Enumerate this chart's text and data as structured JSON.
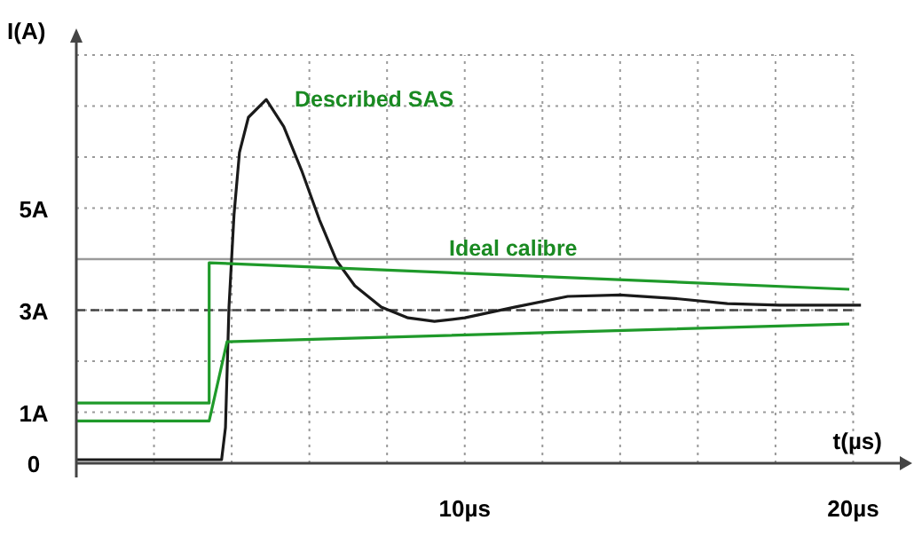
{
  "chart_data": {
    "type": "line",
    "xlabel": "t(µs)",
    "ylabel": "I(A)",
    "xlim": [
      0,
      21.2
    ],
    "ylim": [
      0,
      8.35
    ],
    "xticks": [
      {
        "value": 2,
        "label": null
      },
      {
        "value": 4,
        "label": null
      },
      {
        "value": 6,
        "label": null
      },
      {
        "value": 8,
        "label": null
      },
      {
        "value": 10,
        "label": "10µs"
      },
      {
        "value": 12,
        "label": null
      },
      {
        "value": 14,
        "label": null
      },
      {
        "value": 16,
        "label": null
      },
      {
        "value": 18,
        "label": null
      },
      {
        "value": 20,
        "label": "20µs"
      }
    ],
    "yticks": [
      0,
      {
        "value": 1,
        "label": "1A"
      },
      {
        "value": 2,
        "label": null
      },
      {
        "value": 3,
        "label": "3A"
      },
      {
        "value": 4,
        "label": null
      },
      {
        "value": 5,
        "label": "5A"
      },
      {
        "value": 6,
        "label": null
      },
      {
        "value": 7,
        "label": null
      },
      {
        "value": 8,
        "label": null
      }
    ],
    "grid": true,
    "marker": "none",
    "line_style": "solid",
    "series": [
      {
        "color": "#1a1a1a",
        "x": [
          0,
          3.74,
          3.84,
          3.93,
          4.06,
          4.2,
          4.43,
          4.89,
          5.34,
          5.8,
          6.26,
          6.7,
          7.17,
          7.85,
          8.54,
          9.22,
          10,
          11.28,
          12.65,
          14,
          15.4,
          16.76,
          18.1,
          20.2
        ],
        "values": [
          0.07,
          0.07,
          0.7,
          3.06,
          4.87,
          6.09,
          6.78,
          7.13,
          6.6,
          5.74,
          4.77,
          3.97,
          3.48,
          3.06,
          2.85,
          2.78,
          2.85,
          3.06,
          3.27,
          3.3,
          3.23,
          3.13,
          3.1,
          3.1
        ]
      },
      {
        "color": "#1f9a2a",
        "x": [
          0,
          3.42,
          3.42,
          19.9
        ],
        "values": [
          1.18,
          1.18,
          3.93,
          3.41
        ]
      },
      {
        "color": "#1f9a2a",
        "x": [
          0,
          3.42,
          3.88,
          19.9
        ],
        "values": [
          0.83,
          0.83,
          2.38,
          2.73
        ]
      }
    ],
    "ref_lines": [
      {
        "axis": "y",
        "value": 4,
        "color": "#9a9a9a",
        "line_style": "solid"
      },
      {
        "axis": "y",
        "value": 3,
        "color": "#444444",
        "line_style": "dashed"
      }
    ],
    "annotations": [
      "Described SAS",
      "Ideal calibre"
    ]
  }
}
